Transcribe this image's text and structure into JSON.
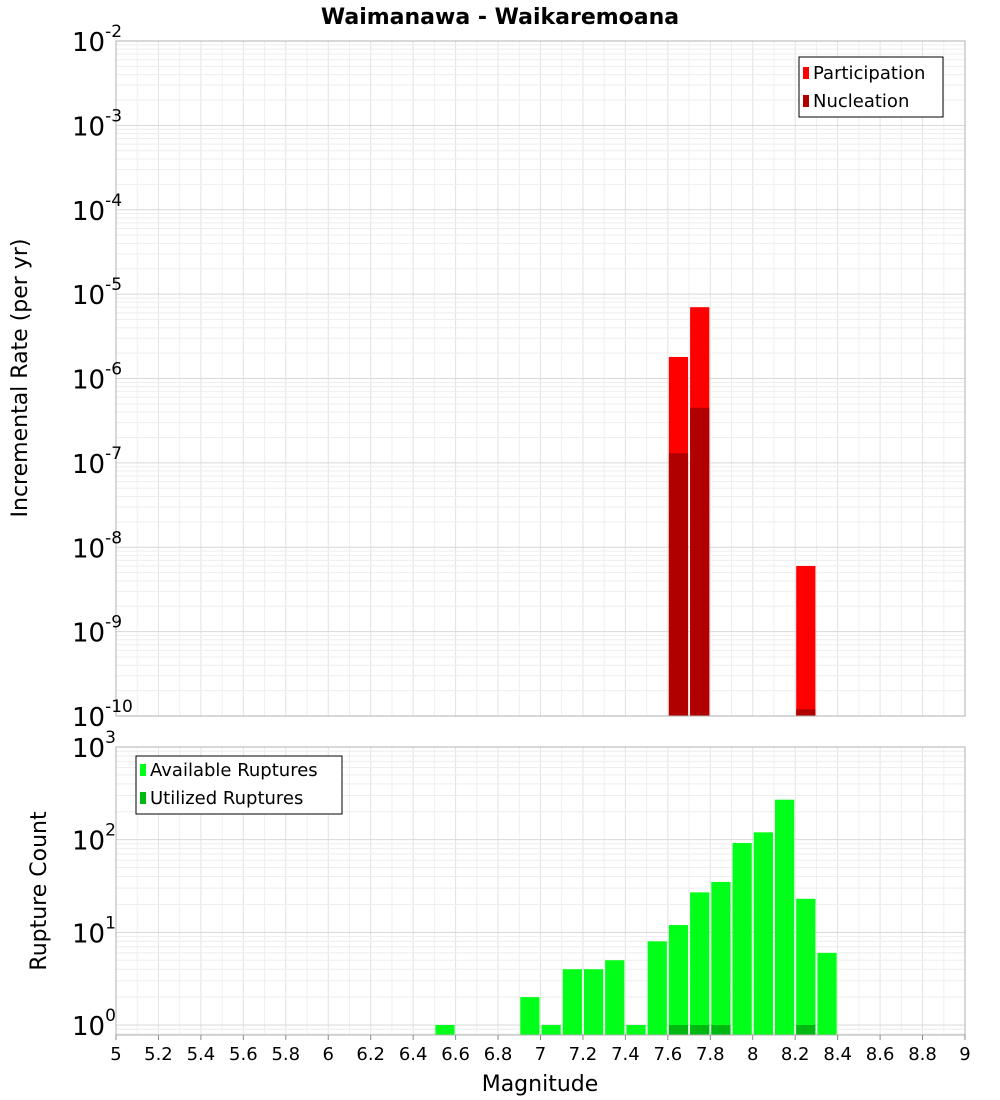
{
  "chart_data": [
    {
      "type": "bar",
      "title": "Waimanawa - Waikaremoana",
      "ylabel": "Incremental Rate (per yr)",
      "xlabel": "",
      "xlim": [
        5,
        9
      ],
      "ylim": [
        1e-10,
        0.01
      ],
      "yscale": "log",
      "y_tick_labels": [
        {
          "value": 0.01,
          "base": "10",
          "exp": "-2"
        },
        {
          "value": 0.001,
          "base": "10",
          "exp": "-3"
        },
        {
          "value": 0.0001,
          "base": "10",
          "exp": "-4"
        },
        {
          "value": 1e-05,
          "base": "10",
          "exp": "-5"
        },
        {
          "value": 1e-06,
          "base": "10",
          "exp": "-6"
        },
        {
          "value": 1e-07,
          "base": "10",
          "exp": "-7"
        },
        {
          "value": 1e-08,
          "base": "10",
          "exp": "-8"
        },
        {
          "value": 1e-09,
          "base": "10",
          "exp": "-9"
        },
        {
          "value": 1e-10,
          "base": "10",
          "exp": "-10"
        }
      ],
      "bin_width": 0.1,
      "grid": true,
      "legend_position": "top-right",
      "series": [
        {
          "name": "Participation",
          "color": "#ff0000",
          "points": [
            {
              "x": 7.65,
              "y": 1.8e-06
            },
            {
              "x": 7.75,
              "y": 7e-06
            },
            {
              "x": 8.25,
              "y": 6e-09
            }
          ]
        },
        {
          "name": "Nucleation",
          "color": "#b00000",
          "points": [
            {
              "x": 7.65,
              "y": 1.3e-07
            },
            {
              "x": 7.75,
              "y": 4.5e-07
            },
            {
              "x": 8.25,
              "y": 1.2e-10
            }
          ]
        }
      ]
    },
    {
      "type": "bar",
      "title": "",
      "ylabel": "Rupture Count",
      "xlabel": "Magnitude",
      "xlim": [
        5,
        9
      ],
      "ylim": [
        0.78,
        1000
      ],
      "yscale": "log",
      "y_tick_labels": [
        {
          "value": 1000,
          "base": "10",
          "exp": "3"
        },
        {
          "value": 100,
          "base": "10",
          "exp": "2"
        },
        {
          "value": 10,
          "base": "10",
          "exp": "1"
        },
        {
          "value": 1,
          "base": "10",
          "exp": "0"
        }
      ],
      "x_tick_labels": [
        "5",
        "5.2",
        "5.4",
        "5.6",
        "5.8",
        "6",
        "6.2",
        "6.4",
        "6.6",
        "6.8",
        "7",
        "7.2",
        "7.4",
        "7.6",
        "7.8",
        "8",
        "8.2",
        "8.4",
        "8.6",
        "8.8",
        "9"
      ],
      "bin_width": 0.1,
      "grid": true,
      "legend_position": "top-left",
      "series": [
        {
          "name": "Available Ruptures",
          "color": "#00ff19",
          "points": [
            {
              "x": 6.55,
              "y": 1
            },
            {
              "x": 6.95,
              "y": 2
            },
            {
              "x": 7.05,
              "y": 1
            },
            {
              "x": 7.15,
              "y": 4
            },
            {
              "x": 7.25,
              "y": 4
            },
            {
              "x": 7.35,
              "y": 5
            },
            {
              "x": 7.45,
              "y": 1
            },
            {
              "x": 7.55,
              "y": 8
            },
            {
              "x": 7.65,
              "y": 12
            },
            {
              "x": 7.75,
              "y": 27
            },
            {
              "x": 7.85,
              "y": 35
            },
            {
              "x": 7.95,
              "y": 92
            },
            {
              "x": 8.05,
              "y": 120
            },
            {
              "x": 8.15,
              "y": 270
            },
            {
              "x": 8.25,
              "y": 23
            },
            {
              "x": 8.35,
              "y": 6
            }
          ]
        },
        {
          "name": "Utilized Ruptures",
          "color": "#00b812",
          "points": [
            {
              "x": 7.65,
              "y": 1
            },
            {
              "x": 7.75,
              "y": 1
            },
            {
              "x": 7.85,
              "y": 1
            },
            {
              "x": 8.25,
              "y": 1
            }
          ]
        }
      ]
    }
  ]
}
